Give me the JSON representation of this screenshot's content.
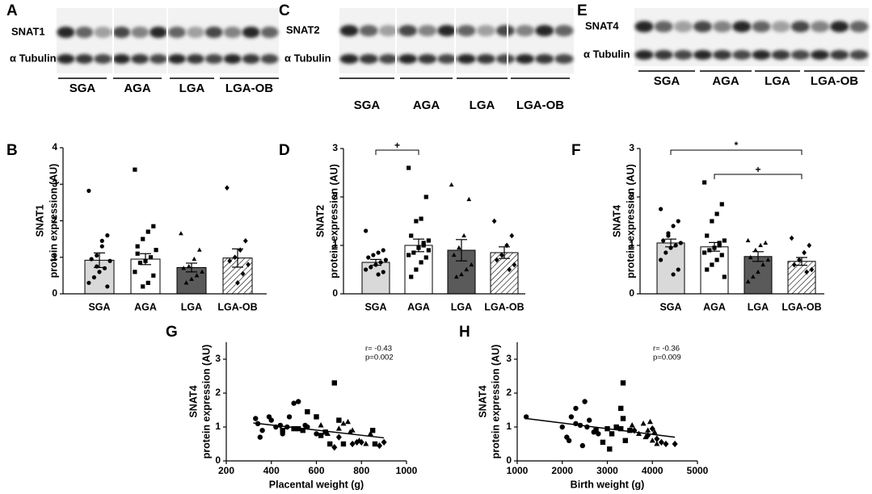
{
  "blots": [
    {
      "panel": "A",
      "rows": [
        "SNAT1",
        "α Tubulin"
      ],
      "groups": [
        "SGA",
        "AGA",
        "LGA",
        "LGA-OB"
      ]
    },
    {
      "panel": "C",
      "rows": [
        "SNAT2",
        "α Tubulin"
      ],
      "groups": [
        "SGA",
        "AGA",
        "LGA",
        "LGA-OB"
      ]
    },
    {
      "panel": "E",
      "rows": [
        "SNAT4",
        "α Tubulin"
      ],
      "groups": [
        "SGA",
        "AGA",
        "LGA",
        "LGA-OB"
      ]
    }
  ],
  "chart_data": [
    {
      "type": "bar",
      "panel": "B",
      "ylabel": [
        "SNAT1",
        "protein expression (AU)"
      ],
      "categories": [
        "SGA",
        "AGA",
        "LGA",
        "LGA-OB"
      ],
      "values": [
        0.92,
        0.95,
        0.72,
        0.98
      ],
      "errors": [
        0.2,
        0.15,
        0.12,
        0.25
      ],
      "bar_fills": [
        "#d9d9d9",
        "#ffffff",
        "#5a5a5a",
        "#ffffff"
      ],
      "hatched": [
        false,
        false,
        false,
        true
      ],
      "markers": [
        "circle",
        "square",
        "triangle",
        "diamond"
      ],
      "points": [
        [
          2.82,
          1.6,
          1.45,
          1.05,
          0.95,
          0.9,
          0.7,
          0.6,
          0.45,
          0.3,
          0.2,
          1.3,
          0.75
        ],
        [
          3.4,
          1.85,
          1.7,
          1.5,
          1.3,
          1.2,
          1.0,
          0.9,
          0.85,
          0.6,
          0.5,
          0.3,
          0.2,
          1.1
        ],
        [
          1.65,
          1.2,
          0.95,
          0.75,
          0.7,
          0.6,
          0.5,
          0.4,
          0.3
        ],
        [
          2.9,
          1.45,
          1.2,
          1.0,
          0.9,
          0.8,
          0.55,
          0.3
        ]
      ],
      "ylim": [
        0,
        4
      ],
      "yticks": [
        0,
        1,
        2,
        3,
        4
      ],
      "significance": []
    },
    {
      "type": "bar",
      "panel": "D",
      "ylabel": [
        "SNAT2",
        "protein expression (AU)"
      ],
      "categories": [
        "SGA",
        "AGA",
        "LGA",
        "LGA-OB"
      ],
      "values": [
        0.65,
        1.0,
        0.9,
        0.85
      ],
      "errors": [
        0.06,
        0.13,
        0.22,
        0.12
      ],
      "bar_fills": [
        "#d9d9d9",
        "#ffffff",
        "#5a5a5a",
        "#ffffff"
      ],
      "hatched": [
        false,
        false,
        false,
        true
      ],
      "markers": [
        "circle",
        "square",
        "triangle",
        "diamond"
      ],
      "points": [
        [
          1.3,
          0.9,
          0.85,
          0.8,
          0.75,
          0.7,
          0.65,
          0.6,
          0.55,
          0.5,
          0.45,
          0.4
        ],
        [
          2.6,
          2.0,
          1.55,
          1.5,
          1.2,
          1.1,
          1.0,
          0.95,
          0.85,
          0.8,
          0.75,
          0.65,
          0.5,
          0.35,
          0.9,
          1.05
        ],
        [
          2.25,
          1.95,
          1.2,
          0.95,
          0.8,
          0.6,
          0.5,
          0.4,
          0.35
        ],
        [
          1.5,
          1.2,
          1.0,
          0.8,
          0.7,
          0.6,
          0.5
        ]
      ],
      "ylim": [
        0,
        3
      ],
      "yticks": [
        0,
        1,
        2,
        3
      ],
      "significance": [
        {
          "from": "SGA",
          "to": "AGA",
          "label": "+"
        }
      ]
    },
    {
      "type": "bar",
      "panel": "F",
      "ylabel": [
        "SNAT4",
        "protein expression (AU)"
      ],
      "categories": [
        "SGA",
        "AGA",
        "LGA",
        "LGA-OB"
      ],
      "values": [
        1.05,
        0.97,
        0.77,
        0.67
      ],
      "errors": [
        0.08,
        0.09,
        0.1,
        0.08
      ],
      "bar_fills": [
        "#d9d9d9",
        "#ffffff",
        "#5a5a5a",
        "#ffffff"
      ],
      "hatched": [
        false,
        false,
        false,
        true
      ],
      "markers": [
        "circle",
        "square",
        "triangle",
        "diamond"
      ],
      "points": [
        [
          1.75,
          1.5,
          1.4,
          1.25,
          1.1,
          1.05,
          1.0,
          0.95,
          0.85,
          0.7,
          0.5,
          0.4,
          1.2
        ],
        [
          2.3,
          1.85,
          1.65,
          1.5,
          1.2,
          1.1,
          1.0,
          0.95,
          0.9,
          0.85,
          0.8,
          0.7,
          0.6,
          0.5,
          0.35,
          1.05
        ],
        [
          1.1,
          1.05,
          1.0,
          0.9,
          0.75,
          0.7,
          0.6,
          0.45,
          0.35,
          0.25
        ],
        [
          1.15,
          1.0,
          0.85,
          0.7,
          0.6,
          0.5,
          0.45
        ]
      ],
      "ylim": [
        0,
        3
      ],
      "yticks": [
        0,
        1,
        2,
        3
      ],
      "significance": [
        {
          "from": "SGA",
          "to": "LGA-OB",
          "label": "*"
        },
        {
          "from": "AGA",
          "to": "LGA-OB",
          "label": "+"
        }
      ]
    },
    {
      "type": "scatter",
      "panel": "G",
      "ylabel": [
        "SNAT4",
        "protein expression (AU)"
      ],
      "xlabel": "Placental weight (g)",
      "annotations": [
        "r= -0.43",
        "p=0.002"
      ],
      "xlim": [
        200,
        1000
      ],
      "xticks": [
        200,
        400,
        600,
        800,
        1000
      ],
      "ylim": [
        0,
        3.5
      ],
      "yticks": [
        0,
        1,
        2,
        3
      ],
      "series": [
        {
          "marker": "circle",
          "color": "#000000",
          "x": [
            330,
            340,
            350,
            360,
            390,
            400,
            420,
            440,
            450,
            470,
            480,
            500,
            520,
            550,
            560,
            600
          ],
          "y": [
            1.25,
            1.1,
            0.7,
            0.9,
            1.3,
            1.2,
            1.0,
            1.05,
            0.8,
            1.0,
            1.3,
            1.7,
            1.75,
            1.05,
            1.0,
            0.8
          ]
        },
        {
          "marker": "square",
          "color": "#000000",
          "x": [
            450,
            500,
            520,
            560,
            540,
            600,
            620,
            640,
            660,
            680,
            700,
            720,
            850,
            860
          ],
          "y": [
            0.9,
            0.95,
            0.95,
            1.45,
            0.9,
            1.3,
            0.75,
            0.85,
            0.5,
            2.3,
            1.2,
            0.5,
            0.9,
            0.5
          ]
        },
        {
          "marker": "triangle",
          "color": "#000000",
          "x": [
            620,
            650,
            700,
            720,
            740,
            750,
            760,
            790,
            820,
            840
          ],
          "y": [
            1.05,
            0.8,
            0.95,
            1.1,
            1.15,
            0.85,
            0.9,
            0.6,
            0.5,
            0.8
          ]
        },
        {
          "marker": "diamond",
          "color": "#000000",
          "x": [
            680,
            700,
            760,
            780,
            800,
            880,
            900
          ],
          "y": [
            0.4,
            0.7,
            0.5,
            0.55,
            0.55,
            0.45,
            0.55
          ]
        }
      ],
      "trendline": {
        "x": [
          320,
          900
        ],
        "y": [
          1.12,
          0.68
        ]
      }
    },
    {
      "type": "scatter",
      "panel": "H",
      "ylabel": [
        "SNAT4",
        "protein expression (AU)"
      ],
      "xlabel": "Birth weight (g)",
      "annotations": [
        "r= -0.36",
        "p=0.009"
      ],
      "xlim": [
        1000,
        5000
      ],
      "xticks": [
        1000,
        2000,
        3000,
        4000,
        5000
      ],
      "ylim": [
        0,
        3.5
      ],
      "yticks": [
        0,
        1,
        2,
        3
      ],
      "series": [
        {
          "marker": "circle",
          "color": "#000000",
          "x": [
            1200,
            2000,
            2100,
            2150,
            2200,
            2300,
            2400,
            2450,
            2500,
            2600,
            2700,
            2800,
            2300,
            2550
          ],
          "y": [
            1.3,
            1.0,
            0.7,
            0.6,
            1.3,
            1.1,
            1.05,
            0.45,
            1.75,
            1.2,
            0.85,
            0.8,
            1.55,
            1.0
          ]
        },
        {
          "marker": "square",
          "color": "#000000",
          "x": [
            2750,
            2900,
            3000,
            3050,
            3200,
            3300,
            3300,
            3350,
            3350,
            3400,
            3100,
            3500
          ],
          "y": [
            0.9,
            0.55,
            0.95,
            0.35,
            1.0,
            1.55,
            0.95,
            2.3,
            1.25,
            0.6,
            0.8,
            0.9
          ]
        },
        {
          "marker": "triangle",
          "color": "#000000",
          "x": [
            3550,
            3700,
            3800,
            3900,
            3950,
            4000,
            4100,
            3850,
            4050
          ],
          "y": [
            1.05,
            0.8,
            1.1,
            0.9,
            1.15,
            0.6,
            0.5,
            0.7,
            0.85
          ]
        },
        {
          "marker": "diamond",
          "color": "#000000",
          "x": [
            3600,
            3900,
            4200,
            4300,
            4500,
            4100,
            4000
          ],
          "y": [
            0.9,
            0.75,
            0.55,
            0.5,
            0.5,
            0.65,
            0.95
          ]
        }
      ],
      "trendline": {
        "x": [
          1200,
          4500
        ],
        "y": [
          1.25,
          0.7
        ]
      }
    }
  ]
}
